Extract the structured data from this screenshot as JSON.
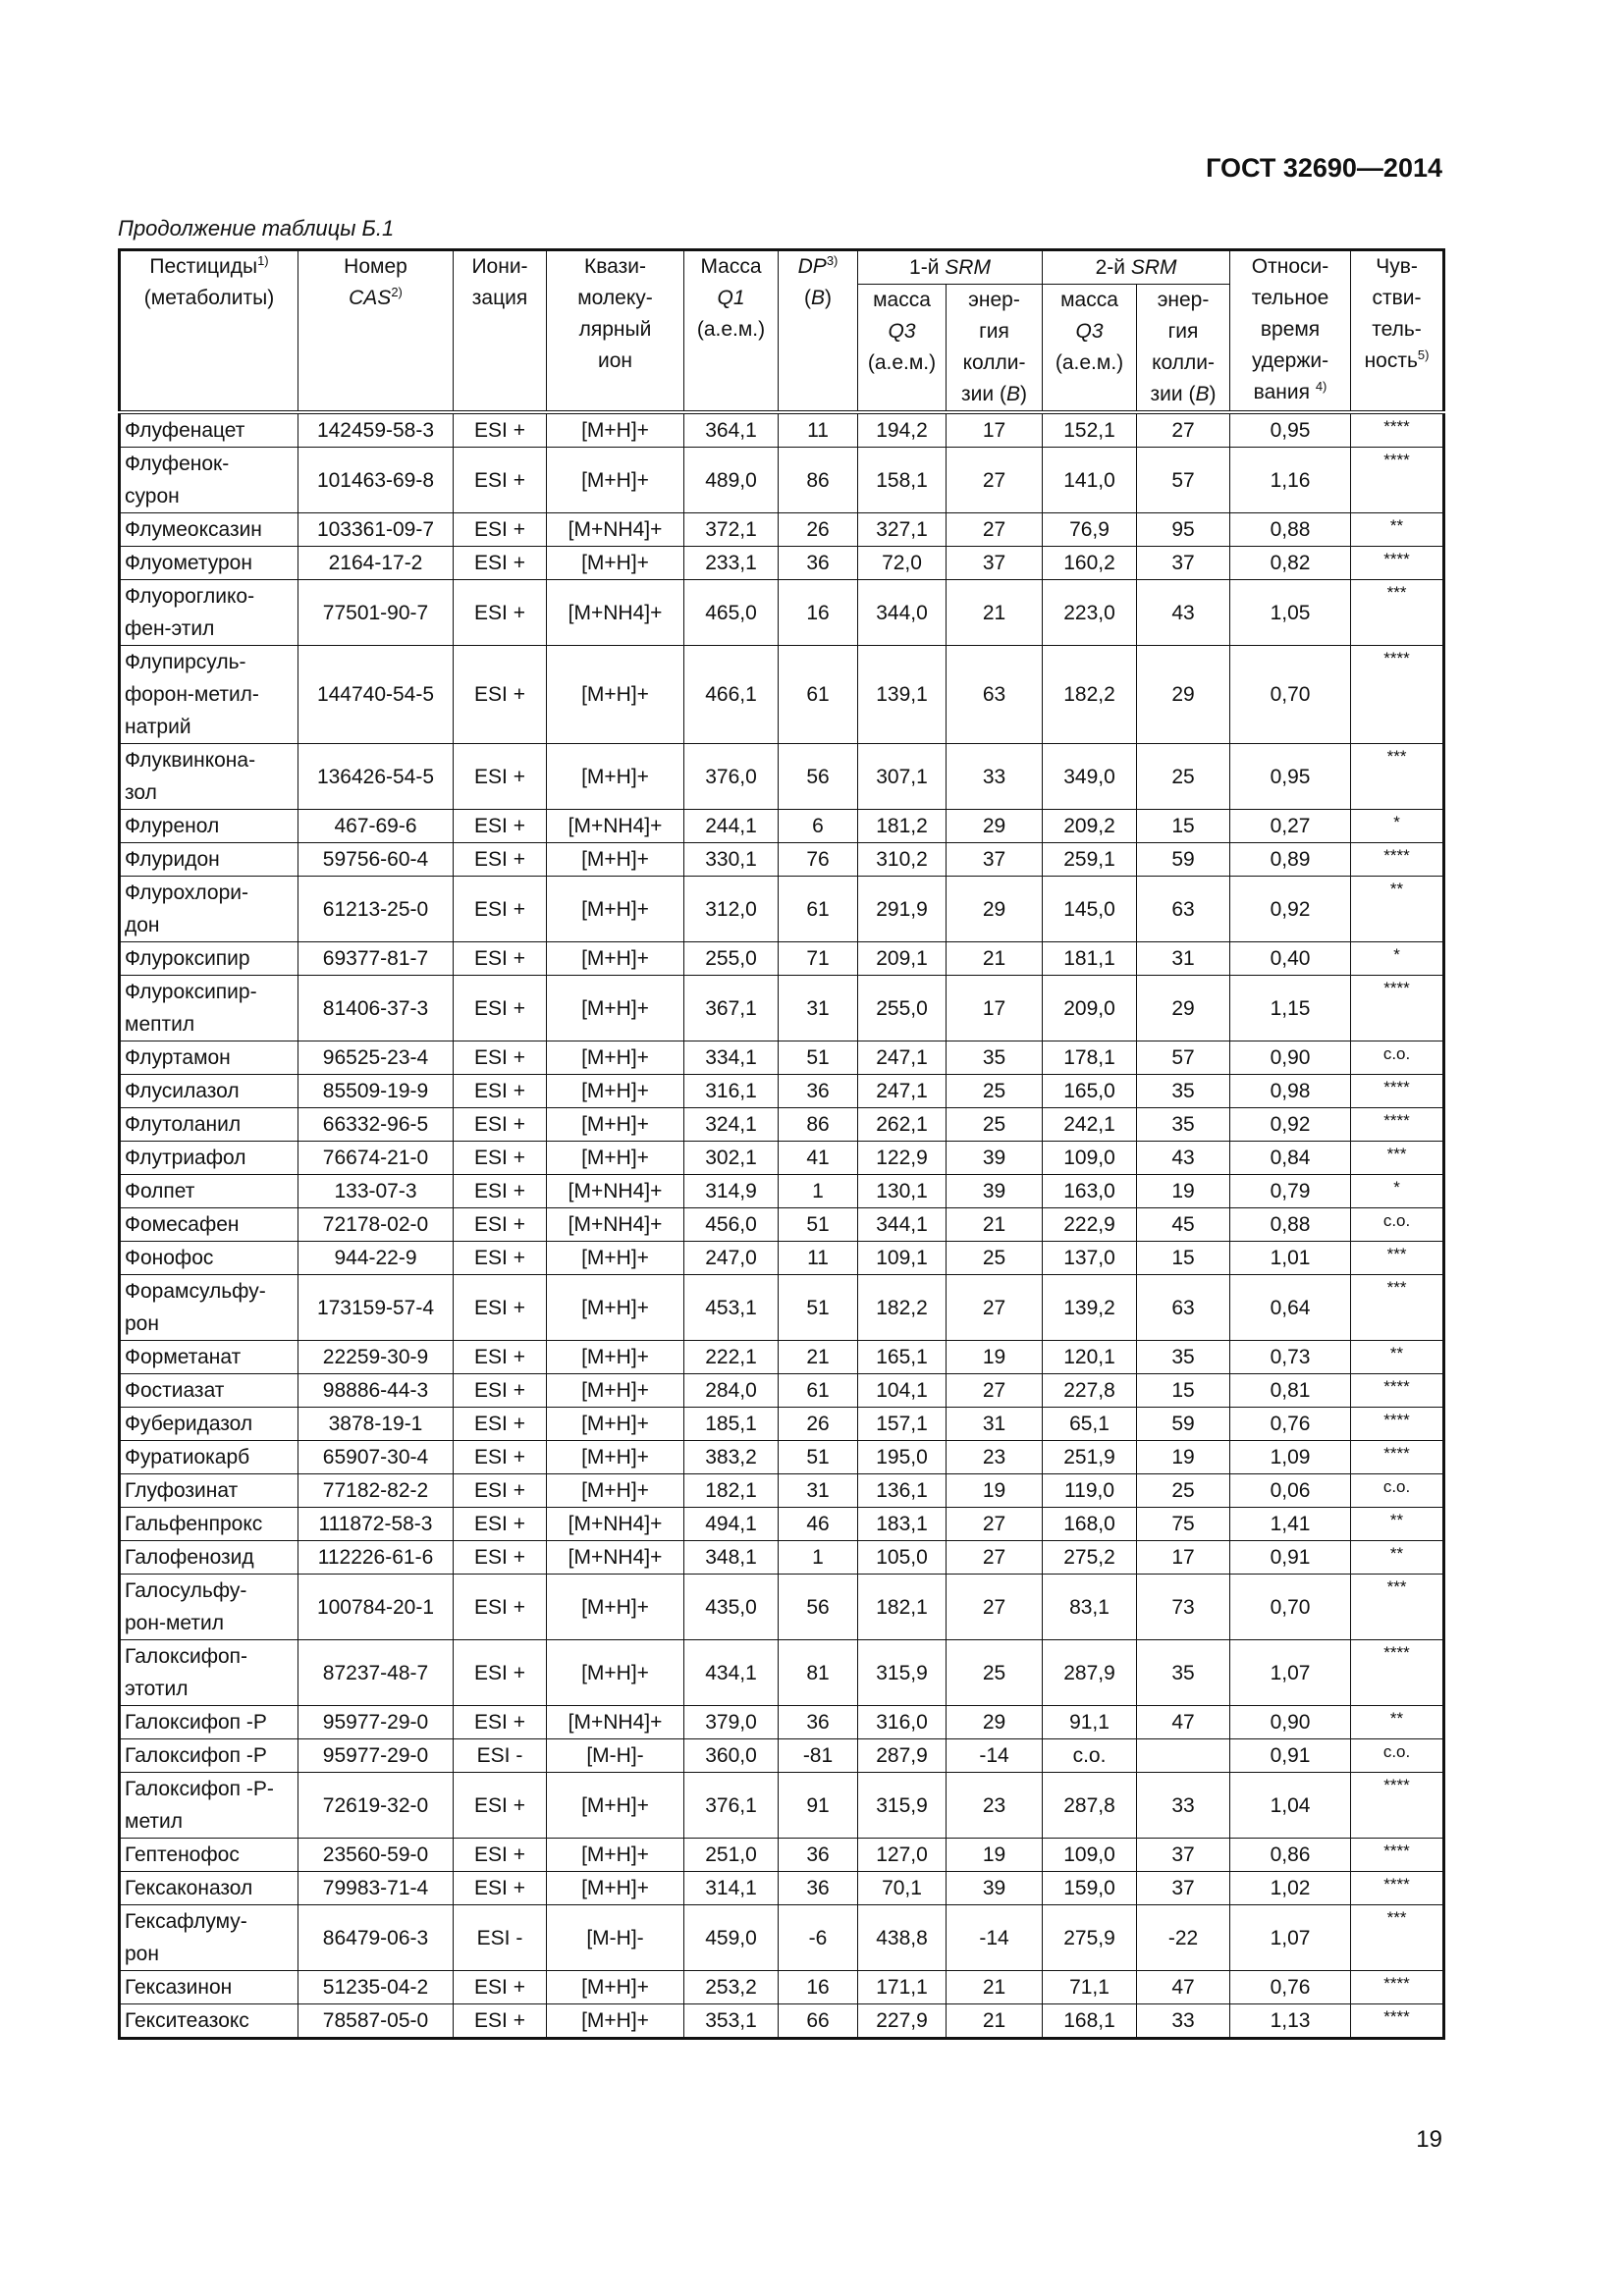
{
  "header": {
    "title": "ГОСТ 32690—2014"
  },
  "caption": "Продолжение таблицы Б.1",
  "page_number": "19",
  "table": {
    "header_top": [
      [
        {
          "t": "Пестициды"
        },
        {
          "t": "1)",
          "sup": true
        },
        {
          "t": "\n(метаболиты)"
        }
      ],
      [
        {
          "t": "Номер\n"
        },
        {
          "t": "CAS",
          "italic": true
        },
        {
          "t": "2)",
          "sup": true
        }
      ],
      [
        {
          "t": "Иони-\nзация"
        }
      ],
      [
        {
          "t": "Квази-\nмолеку-\nлярный\nион"
        }
      ],
      [
        {
          "t": "Масса\n"
        },
        {
          "t": "Q1",
          "italic": true
        },
        {
          "t": "\n(а.е.м.)"
        }
      ],
      [
        {
          "t": "DP",
          "italic": true
        },
        {
          "t": "3)",
          "sup": true
        },
        {
          "t": "\n("
        },
        {
          "t": "B",
          "italic": true
        },
        {
          "t": ")"
        }
      ],
      [
        {
          "t": "1-й "
        },
        {
          "t": "SRM",
          "italic": true
        }
      ],
      [
        {
          "t": "2-й "
        },
        {
          "t": "SRM",
          "italic": true
        }
      ],
      [
        {
          "t": "Относи-\nтельное\nвремя\nудержи-\nвания "
        },
        {
          "t": "4)",
          "sup": true
        }
      ],
      [
        {
          "t": "Чув-\nстви-\nтель-\nность"
        },
        {
          "t": "5)",
          "sup": true
        }
      ]
    ],
    "header_sub": [
      [
        {
          "t": "масса\n"
        },
        {
          "t": "Q3",
          "italic": true
        },
        {
          "t": "\n(а.е.м.)"
        }
      ],
      [
        {
          "t": "энер-\nгия\nколли-\nзии ("
        },
        {
          "t": "B",
          "italic": true
        },
        {
          "t": ")"
        }
      ],
      [
        {
          "t": "масса\n"
        },
        {
          "t": "Q3",
          "italic": true
        },
        {
          "t": "\n(а.е.м.)"
        }
      ],
      [
        {
          "t": "энер-\nгия\nколли-\nзии ("
        },
        {
          "t": "B",
          "italic": true
        },
        {
          "t": ")"
        }
      ]
    ],
    "rows": [
      [
        "Флуфенацет",
        "142459-58-3",
        "ESI +",
        "[M+H]+",
        "364,1",
        "11",
        "194,2",
        "17",
        "152,1",
        "27",
        "0,95",
        "****"
      ],
      [
        "Флуфенок-\nсурон",
        "101463-69-8",
        "ESI +",
        "[M+H]+",
        "489,0",
        "86",
        "158,1",
        "27",
        "141,0",
        "57",
        "1,16",
        "****"
      ],
      [
        "Флумеоксазин",
        "103361-09-7",
        "ESI +",
        "[M+NH4]+",
        "372,1",
        "26",
        "327,1",
        "27",
        "76,9",
        "95",
        "0,88",
        "**"
      ],
      [
        "Флуометурон",
        "2164-17-2",
        "ESI +",
        "[M+H]+",
        "233,1",
        "36",
        "72,0",
        "37",
        "160,2",
        "37",
        "0,82",
        "****"
      ],
      [
        "Флуороглико-\nфен-этил",
        "77501-90-7",
        "ESI +",
        "[M+NH4]+",
        "465,0",
        "16",
        "344,0",
        "21",
        "223,0",
        "43",
        "1,05",
        "***"
      ],
      [
        "Флупирсуль-\nфорон-метил-\nнатрий",
        "144740-54-5",
        "ESI +",
        "[M+H]+",
        "466,1",
        "61",
        "139,1",
        "63",
        "182,2",
        "29",
        "0,70",
        "****"
      ],
      [
        "Флуквинкона-\nзол",
        "136426-54-5",
        "ESI +",
        "[M+H]+",
        "376,0",
        "56",
        "307,1",
        "33",
        "349,0",
        "25",
        "0,95",
        "***"
      ],
      [
        "Флуренол",
        "467-69-6",
        "ESI +",
        "[M+NH4]+",
        "244,1",
        "6",
        "181,2",
        "29",
        "209,2",
        "15",
        "0,27",
        "*"
      ],
      [
        "Флуридон",
        "59756-60-4",
        "ESI +",
        "[M+H]+",
        "330,1",
        "76",
        "310,2",
        "37",
        "259,1",
        "59",
        "0,89",
        "****"
      ],
      [
        "Флурохлори-\nдон",
        "61213-25-0",
        "ESI +",
        "[M+H]+",
        "312,0",
        "61",
        "291,9",
        "29",
        "145,0",
        "63",
        "0,92",
        "**"
      ],
      [
        "Флуроксипир",
        "69377-81-7",
        "ESI +",
        "[M+H]+",
        "255,0",
        "71",
        "209,1",
        "21",
        "181,1",
        "31",
        "0,40",
        "*"
      ],
      [
        "Флуроксипир-\nмептил",
        "81406-37-3",
        "ESI +",
        "[M+H]+",
        "367,1",
        "31",
        "255,0",
        "17",
        "209,0",
        "29",
        "1,15",
        "****"
      ],
      [
        "Флуртамон",
        "96525-23-4",
        "ESI +",
        "[M+H]+",
        "334,1",
        "51",
        "247,1",
        "35",
        "178,1",
        "57",
        "0,90",
        "с.о."
      ],
      [
        "Флусилазол",
        "85509-19-9",
        "ESI +",
        "[M+H]+",
        "316,1",
        "36",
        "247,1",
        "25",
        "165,0",
        "35",
        "0,98",
        "****"
      ],
      [
        "Флутоланил",
        "66332-96-5",
        "ESI +",
        "[M+H]+",
        "324,1",
        "86",
        "262,1",
        "25",
        "242,1",
        "35",
        "0,92",
        "****"
      ],
      [
        "Флутриафол",
        "76674-21-0",
        "ESI +",
        "[M+H]+",
        "302,1",
        "41",
        "122,9",
        "39",
        "109,0",
        "43",
        "0,84",
        "***"
      ],
      [
        "Фолпет",
        "133-07-3",
        "ESI +",
        "[M+NH4]+",
        "314,9",
        "1",
        "130,1",
        "39",
        "163,0",
        "19",
        "0,79",
        "*"
      ],
      [
        "Фомесафен",
        "72178-02-0",
        "ESI +",
        "[M+NH4]+",
        "456,0",
        "51",
        "344,1",
        "21",
        "222,9",
        "45",
        "0,88",
        "с.о."
      ],
      [
        "Фонофос",
        "944-22-9",
        "ESI +",
        "[M+H]+",
        "247,0",
        "11",
        "109,1",
        "25",
        "137,0",
        "15",
        "1,01",
        "***"
      ],
      [
        "Форамсульфу-\nрон",
        "173159-57-4",
        "ESI +",
        "[M+H]+",
        "453,1",
        "51",
        "182,2",
        "27",
        "139,2",
        "63",
        "0,64",
        "***"
      ],
      [
        "Форметанат",
        "22259-30-9",
        "ESI +",
        "[M+H]+",
        "222,1",
        "21",
        "165,1",
        "19",
        "120,1",
        "35",
        "0,73",
        "**"
      ],
      [
        "Фостиазат",
        "98886-44-3",
        "ESI +",
        "[M+H]+",
        "284,0",
        "61",
        "104,1",
        "27",
        "227,8",
        "15",
        "0,81",
        "****"
      ],
      [
        "Фуберидазол",
        "3878-19-1",
        "ESI +",
        "[M+H]+",
        "185,1",
        "26",
        "157,1",
        "31",
        "65,1",
        "59",
        "0,76",
        "****"
      ],
      [
        "Фуратиокарб",
        "65907-30-4",
        "ESI +",
        "[M+H]+",
        "383,2",
        "51",
        "195,0",
        "23",
        "251,9",
        "19",
        "1,09",
        "****"
      ],
      [
        "Глуфозинат",
        "77182-82-2",
        "ESI +",
        "[M+H]+",
        "182,1",
        "31",
        "136,1",
        "19",
        "119,0",
        "25",
        "0,06",
        "с.о."
      ],
      [
        "Гальфенпрокс",
        "111872-58-3",
        "ESI +",
        "[M+NH4]+",
        "494,1",
        "46",
        "183,1",
        "27",
        "168,0",
        "75",
        "1,41",
        "**"
      ],
      [
        "Галофенозид",
        "112226-61-6",
        "ESI +",
        "[M+NH4]+",
        "348,1",
        "1",
        "105,0",
        "27",
        "275,2",
        "17",
        "0,91",
        "**"
      ],
      [
        "Галосульфу-\nрон-метил",
        "100784-20-1",
        "ESI +",
        "[M+H]+",
        "435,0",
        "56",
        "182,1",
        "27",
        "83,1",
        "73",
        "0,70",
        "***"
      ],
      [
        "Галоксифоп-\nэтотил",
        "87237-48-7",
        "ESI +",
        "[M+H]+",
        "434,1",
        "81",
        "315,9",
        "25",
        "287,9",
        "35",
        "1,07",
        "****"
      ],
      [
        "Галоксифоп -Р",
        "95977-29-0",
        "ESI +",
        "[M+NH4]+",
        "379,0",
        "36",
        "316,0",
        "29",
        "91,1",
        "47",
        "0,90",
        "**"
      ],
      [
        "Галоксифоп -Р",
        "95977-29-0",
        "ESI -",
        "[M-H]-",
        "360,0",
        "-81",
        "287,9",
        "-14",
        "с.о.",
        null,
        "0,91",
        "с.о."
      ],
      [
        "Галоксифоп -Р-\nметил",
        "72619-32-0",
        "ESI +",
        "[M+H]+",
        "376,1",
        "91",
        "315,9",
        "23",
        "287,8",
        "33",
        "1,04",
        "****"
      ],
      [
        "Гептенофос",
        "23560-59-0",
        "ESI +",
        "[M+H]+",
        "251,0",
        "36",
        "127,0",
        "19",
        "109,0",
        "37",
        "0,86",
        "****"
      ],
      [
        "Гексаконазол",
        "79983-71-4",
        "ESI +",
        "[M+H]+",
        "314,1",
        "36",
        "70,1",
        "39",
        "159,0",
        "37",
        "1,02",
        "****"
      ],
      [
        "Гексафлуму-\nрон",
        "86479-06-3",
        "ESI -",
        "[M-H]-",
        "459,0",
        "-6",
        "438,8",
        "-14",
        "275,9",
        "-22",
        "1,07",
        "***"
      ],
      [
        "Гексазинон",
        "51235-04-2",
        "ESI +",
        "[M+H]+",
        "253,2",
        "16",
        "171,1",
        "21",
        "71,1",
        "47",
        "0,76",
        "****"
      ],
      [
        "Гекситеазокс",
        "78587-05-0",
        "ESI +",
        "[M+H]+",
        "353,1",
        "66",
        "227,9",
        "21",
        "168,1",
        "33",
        "1,13",
        "****"
      ]
    ]
  }
}
